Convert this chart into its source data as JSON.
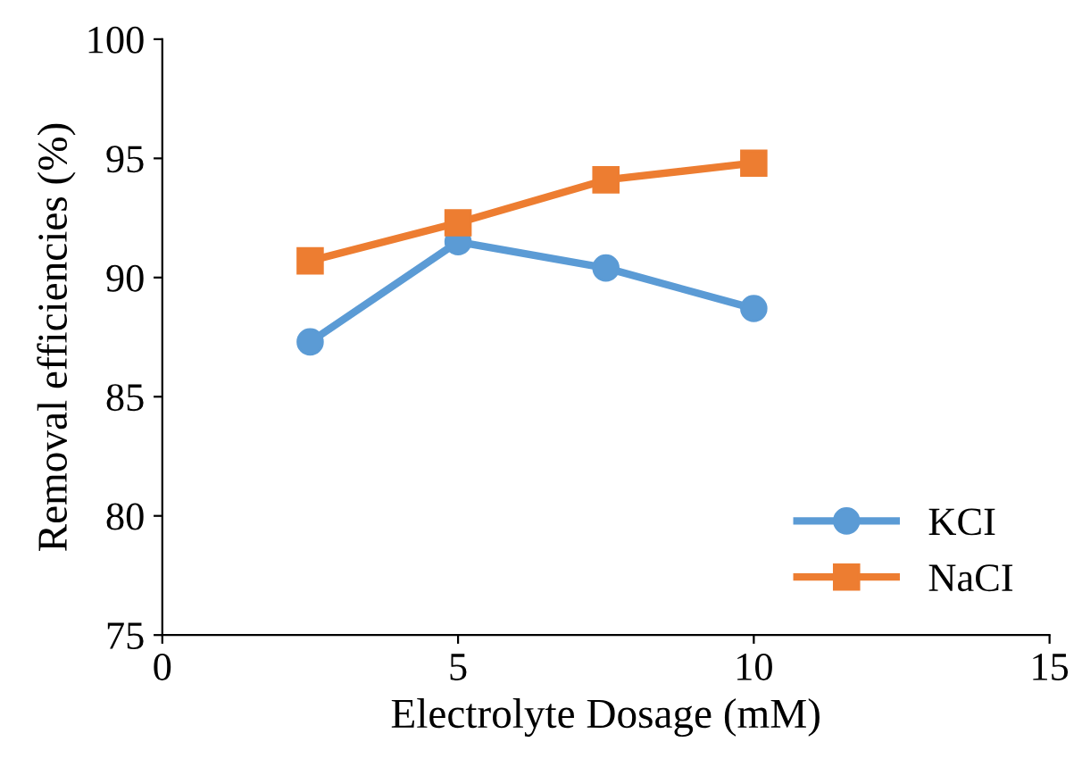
{
  "chart_data": {
    "type": "line",
    "xlabel": "Electrolyte Dosage (mM)",
    "ylabel": "Removal efficiencies (%)",
    "x": [
      2.5,
      5,
      7.5,
      10
    ],
    "series": [
      {
        "name": "KCI",
        "color": "#5b9bd5",
        "values": [
          87.3,
          91.5,
          90.4,
          88.7
        ],
        "marker": "circle"
      },
      {
        "name": "NaCI",
        "color": "#ed7d31",
        "values": [
          90.7,
          92.3,
          94.1,
          94.8
        ],
        "marker": "square"
      }
    ],
    "xlim": [
      0,
      15
    ],
    "xticks": [
      0,
      5,
      10,
      15
    ],
    "ylim": [
      75,
      100
    ],
    "yticks": [
      75,
      80,
      85,
      90,
      95,
      100
    ],
    "grid": false,
    "legend": "bottom right",
    "line_style": "solid"
  }
}
